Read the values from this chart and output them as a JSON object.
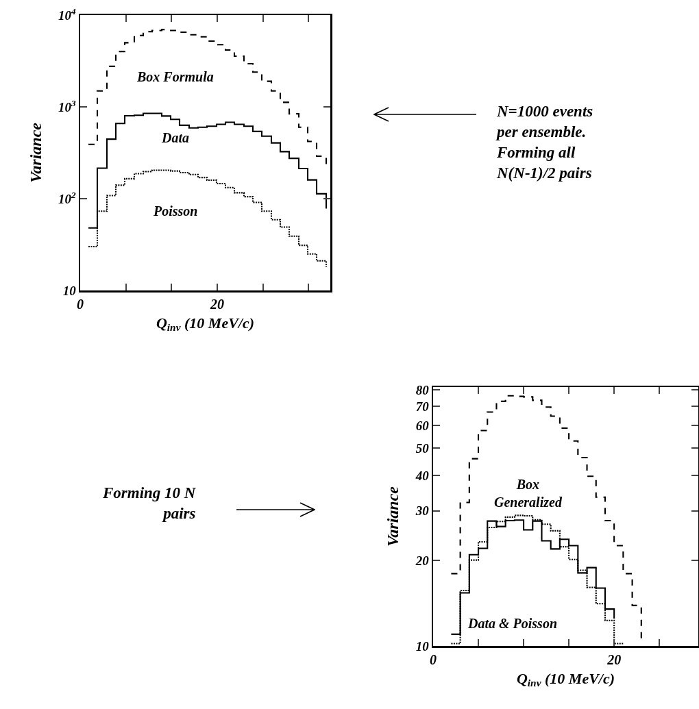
{
  "chart_data": [
    {
      "type": "step",
      "xlabel": "Q$_{inv}$ (10 MeV/c)",
      "ylabel": "Variance",
      "log": "y",
      "grid": false,
      "legend": false,
      "x": [
        1.2,
        2.5,
        3.9,
        5.2,
        6.5,
        7.9,
        9.2,
        10.5,
        11.9,
        13.2,
        14.5,
        15.9,
        17.2,
        18.5,
        19.9,
        21.2,
        22.5,
        23.9,
        25.2,
        26.5,
        27.9,
        29.2,
        30.5,
        31.9,
        33.2,
        34.5,
        35.9
      ],
      "xlim": [
        0,
        36.5
      ],
      "xticks": [
        {
          "value": 0,
          "label": "0"
        },
        {
          "value": 6.67,
          "label": null
        },
        {
          "value": 13.33,
          "label": null
        },
        20,
        {
          "value": 26.67,
          "label": null
        },
        {
          "value": 33.33,
          "label": null
        }
      ],
      "ylim": [
        10,
        10000
      ],
      "yticks": [
        10,
        {
          "value": 100,
          "label": "10$^{2}$"
        },
        {
          "value": 1000,
          "label": "10$^{3}$"
        },
        {
          "value": 10000,
          "label": "10$^{4}$"
        }
      ],
      "series": [
        {
          "name": "Box Formula",
          "color": "#000000",
          "line_style": "dashed",
          "values": [
            390,
            1490,
            2760,
            4000,
            5000,
            5980,
            6600,
            6800,
            6960,
            6800,
            6500,
            6100,
            5800,
            5200,
            4750,
            4160,
            3570,
            2950,
            2390,
            1900,
            1490,
            1120,
            840,
            600,
            420,
            290,
            230
          ]
        },
        {
          "name": "Data",
          "color": "#000000",
          "line_style": "solid",
          "values": [
            48,
            215,
            445,
            660,
            800,
            810,
            850,
            850,
            795,
            730,
            630,
            590,
            600,
            615,
            645,
            680,
            645,
            615,
            540,
            480,
            405,
            325,
            275,
            213,
            160,
            113,
            78
          ]
        },
        {
          "name": "Poisson",
          "color": "#000000",
          "line_style": "dotted",
          "values": [
            30,
            73,
            108,
            140,
            165,
            187,
            197,
            204,
            204,
            200,
            192,
            183,
            170,
            159,
            146,
            132,
            116,
            105,
            91,
            73,
            59,
            49,
            39,
            31,
            25,
            21,
            18
          ]
        }
      ],
      "annotations": [
        "N=1000 events\nper ensemble.\nForming all\nN(N-1)/2 pairs"
      ]
    },
    {
      "type": "step",
      "xlabel": "Q$_{inv}$ (10 MeV/c)",
      "ylabel": "Variance",
      "log": "y",
      "grid": false,
      "legend": false,
      "x": [
        2,
        3,
        4,
        5,
        6,
        7,
        8,
        9,
        10,
        11,
        12,
        13,
        14,
        15,
        16,
        17,
        18,
        19,
        20,
        21,
        22,
        23
      ],
      "xlim": [
        0,
        29.3
      ],
      "xticks": [
        {
          "value": 0,
          "label": "0"
        },
        {
          "value": 5,
          "label": null
        },
        {
          "value": 10,
          "label": null
        },
        {
          "value": 15,
          "label": null
        },
        20,
        {
          "value": 25,
          "label": null
        }
      ],
      "ylim": [
        10,
        82
      ],
      "yticks": [
        10,
        20,
        30,
        40,
        50,
        60,
        70,
        80
      ],
      "series": [
        {
          "name": "Box\nGeneralized",
          "color": "#000000",
          "line_style": "dashed",
          "values": [
            18.0,
            32.1,
            45.8,
            57.6,
            66.9,
            73.0,
            76.4,
            76.0,
            75.7,
            73.6,
            69.7,
            64.7,
            58.7,
            52.9,
            46.2,
            39.7,
            33.5,
            27.7,
            22.6,
            18.0,
            13.9,
            10.6
          ]
        },
        {
          "color": "#000000",
          "line_style": "solid",
          "values": [
            11.0,
            15.4,
            21.0,
            22.1,
            27.6,
            26.4,
            27.7,
            27.8,
            25.7,
            27.6,
            23.5,
            22.0,
            23.8,
            22.6,
            18.1,
            18.9,
            16.0,
            13.5,
            12.5,
            null,
            null,
            null
          ]
        },
        {
          "color": "#000000",
          "line_style": "dotted",
          "values": [
            10.2,
            15.7,
            20.1,
            23.3,
            26.2,
            27.5,
            28.5,
            28.9,
            28.8,
            27.9,
            26.9,
            25.5,
            22.4,
            20.2,
            18.5,
            16.1,
            14.1,
            12.3,
            10.2,
            10.2,
            null,
            null
          ]
        }
      ],
      "annotations": [
        "Data & Poisson",
        "Forming 10 N\npairs"
      ]
    }
  ]
}
